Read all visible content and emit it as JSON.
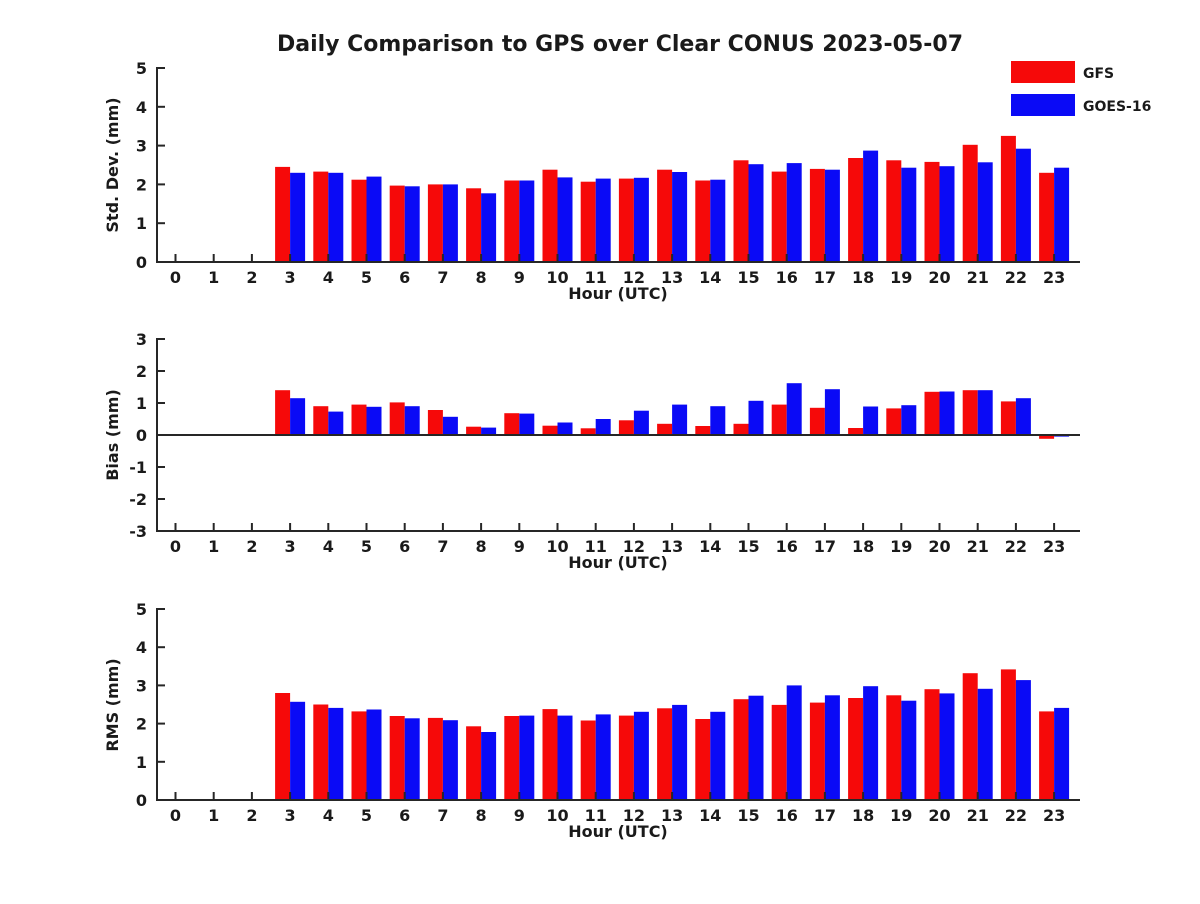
{
  "title": "Daily Comparison to GPS over Clear CONUS 2023-05-07",
  "colors": {
    "gfs": "#f60909",
    "goes16": "#0a0af6",
    "axis": "#262626",
    "background": "#ffffff"
  },
  "legend": {
    "items": [
      {
        "label": "GFS",
        "color": "#f60909"
      },
      {
        "label": "GOES-16",
        "color": "#0a0af6"
      }
    ]
  },
  "chart_data": [
    {
      "type": "bar",
      "panel": "std_dev",
      "ylabel": "Std. Dev. (mm)",
      "xlabel": "Hour (UTC)",
      "ylim": [
        0,
        5
      ],
      "yticks": [
        0,
        1,
        2,
        3,
        4,
        5
      ],
      "grid": false,
      "legend_position": "upper-right-outside",
      "categories": [
        0,
        1,
        2,
        3,
        4,
        5,
        6,
        7,
        8,
        9,
        10,
        11,
        12,
        13,
        14,
        15,
        16,
        17,
        18,
        19,
        20,
        21,
        22,
        23
      ],
      "series": [
        {
          "name": "GFS",
          "color": "#f60909",
          "values": [
            null,
            null,
            null,
            2.45,
            2.33,
            2.12,
            1.97,
            2.0,
            1.9,
            2.1,
            2.38,
            2.07,
            2.15,
            2.38,
            2.1,
            2.62,
            2.33,
            2.4,
            2.68,
            2.62,
            2.58,
            3.02,
            3.25,
            2.3
          ]
        },
        {
          "name": "GOES-16",
          "color": "#0a0af6",
          "values": [
            null,
            null,
            null,
            2.3,
            2.3,
            2.2,
            1.95,
            2.0,
            1.77,
            2.1,
            2.18,
            2.15,
            2.17,
            2.32,
            2.12,
            2.52,
            2.55,
            2.38,
            2.87,
            2.43,
            2.47,
            2.57,
            2.92,
            2.43
          ]
        }
      ]
    },
    {
      "type": "bar",
      "panel": "bias",
      "ylabel": "Bias (mm)",
      "xlabel": "Hour (UTC)",
      "ylim": [
        -3,
        3
      ],
      "yticks": [
        -3,
        -2,
        -1,
        0,
        1,
        2,
        3
      ],
      "zero_line": true,
      "grid": false,
      "categories": [
        0,
        1,
        2,
        3,
        4,
        5,
        6,
        7,
        8,
        9,
        10,
        11,
        12,
        13,
        14,
        15,
        16,
        17,
        18,
        19,
        20,
        21,
        22,
        23
      ],
      "series": [
        {
          "name": "GFS",
          "color": "#f60909",
          "values": [
            null,
            null,
            null,
            1.4,
            0.9,
            0.95,
            1.02,
            0.78,
            0.26,
            0.68,
            0.29,
            0.21,
            0.46,
            0.35,
            0.28,
            0.35,
            0.95,
            0.85,
            0.22,
            0.83,
            1.35,
            1.4,
            1.05,
            -0.12
          ]
        },
        {
          "name": "GOES-16",
          "color": "#0a0af6",
          "values": [
            null,
            null,
            null,
            1.15,
            0.73,
            0.88,
            0.9,
            0.57,
            0.23,
            0.67,
            0.39,
            0.5,
            0.76,
            0.95,
            0.9,
            1.07,
            1.62,
            1.43,
            0.89,
            0.93,
            1.36,
            1.4,
            1.15,
            -0.05
          ]
        }
      ]
    },
    {
      "type": "bar",
      "panel": "rms",
      "ylabel": "RMS (mm)",
      "xlabel": "Hour (UTC)",
      "ylim": [
        0,
        5
      ],
      "yticks": [
        0,
        1,
        2,
        3,
        4,
        5
      ],
      "grid": false,
      "categories": [
        0,
        1,
        2,
        3,
        4,
        5,
        6,
        7,
        8,
        9,
        10,
        11,
        12,
        13,
        14,
        15,
        16,
        17,
        18,
        19,
        20,
        21,
        22,
        23
      ],
      "series": [
        {
          "name": "GFS",
          "color": "#f60909",
          "values": [
            null,
            null,
            null,
            2.8,
            2.5,
            2.32,
            2.2,
            2.15,
            1.93,
            2.2,
            2.38,
            2.08,
            2.21,
            2.4,
            2.12,
            2.64,
            2.49,
            2.55,
            2.67,
            2.74,
            2.9,
            3.32,
            3.42,
            2.32
          ]
        },
        {
          "name": "GOES-16",
          "color": "#0a0af6",
          "values": [
            null,
            null,
            null,
            2.57,
            2.41,
            2.37,
            2.14,
            2.09,
            1.78,
            2.21,
            2.21,
            2.24,
            2.31,
            2.49,
            2.31,
            2.73,
            3.0,
            2.74,
            2.98,
            2.6,
            2.79,
            2.91,
            3.14,
            2.41
          ]
        }
      ]
    }
  ]
}
